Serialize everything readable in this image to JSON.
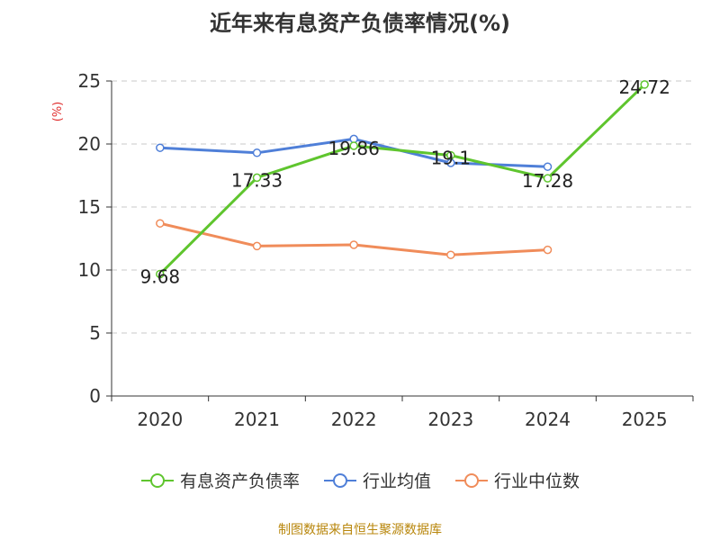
{
  "chart_data": {
    "type": "line",
    "title": "近年来有息资产负债率情况(%)",
    "ylabel": "(%)",
    "categories": [
      "2020",
      "2021",
      "2022",
      "2023",
      "2024",
      "2025"
    ],
    "ylim": [
      0,
      25
    ],
    "yticks": [
      "0",
      "5",
      "10",
      "15",
      "20",
      "25"
    ],
    "grid": true,
    "legend_position": "bottom",
    "series": [
      {
        "name": "有息资产负债率",
        "color": "#5fc52e",
        "values": [
          9.68,
          17.33,
          19.86,
          19.1,
          17.28,
          24.72
        ],
        "labels": [
          "9.68",
          "17.33",
          "19.86",
          "19.1",
          "17.28",
          "24.72"
        ]
      },
      {
        "name": "行业均值",
        "color": "#4f7fd8",
        "values": [
          19.7,
          19.3,
          20.4,
          18.5,
          18.2,
          null
        ]
      },
      {
        "name": "行业中位数",
        "color": "#f08c5a",
        "values": [
          13.7,
          11.9,
          12.0,
          11.2,
          11.6,
          null
        ]
      }
    ]
  },
  "source": "制图数据来自恒生聚源数据库"
}
